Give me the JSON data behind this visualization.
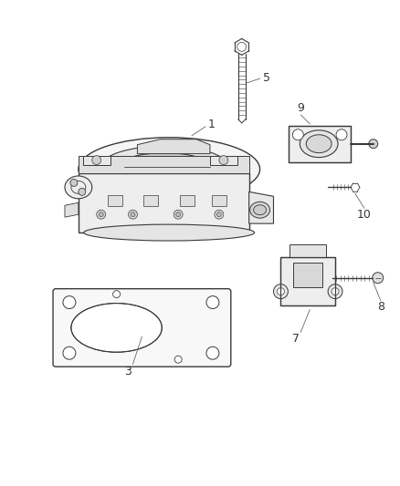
{
  "bg_color": "#ffffff",
  "line_color": "#3a3a3a",
  "figsize": [
    4.38,
    5.33
  ],
  "dpi": 100,
  "label_fontsize": 9,
  "leader_color": "#666666"
}
